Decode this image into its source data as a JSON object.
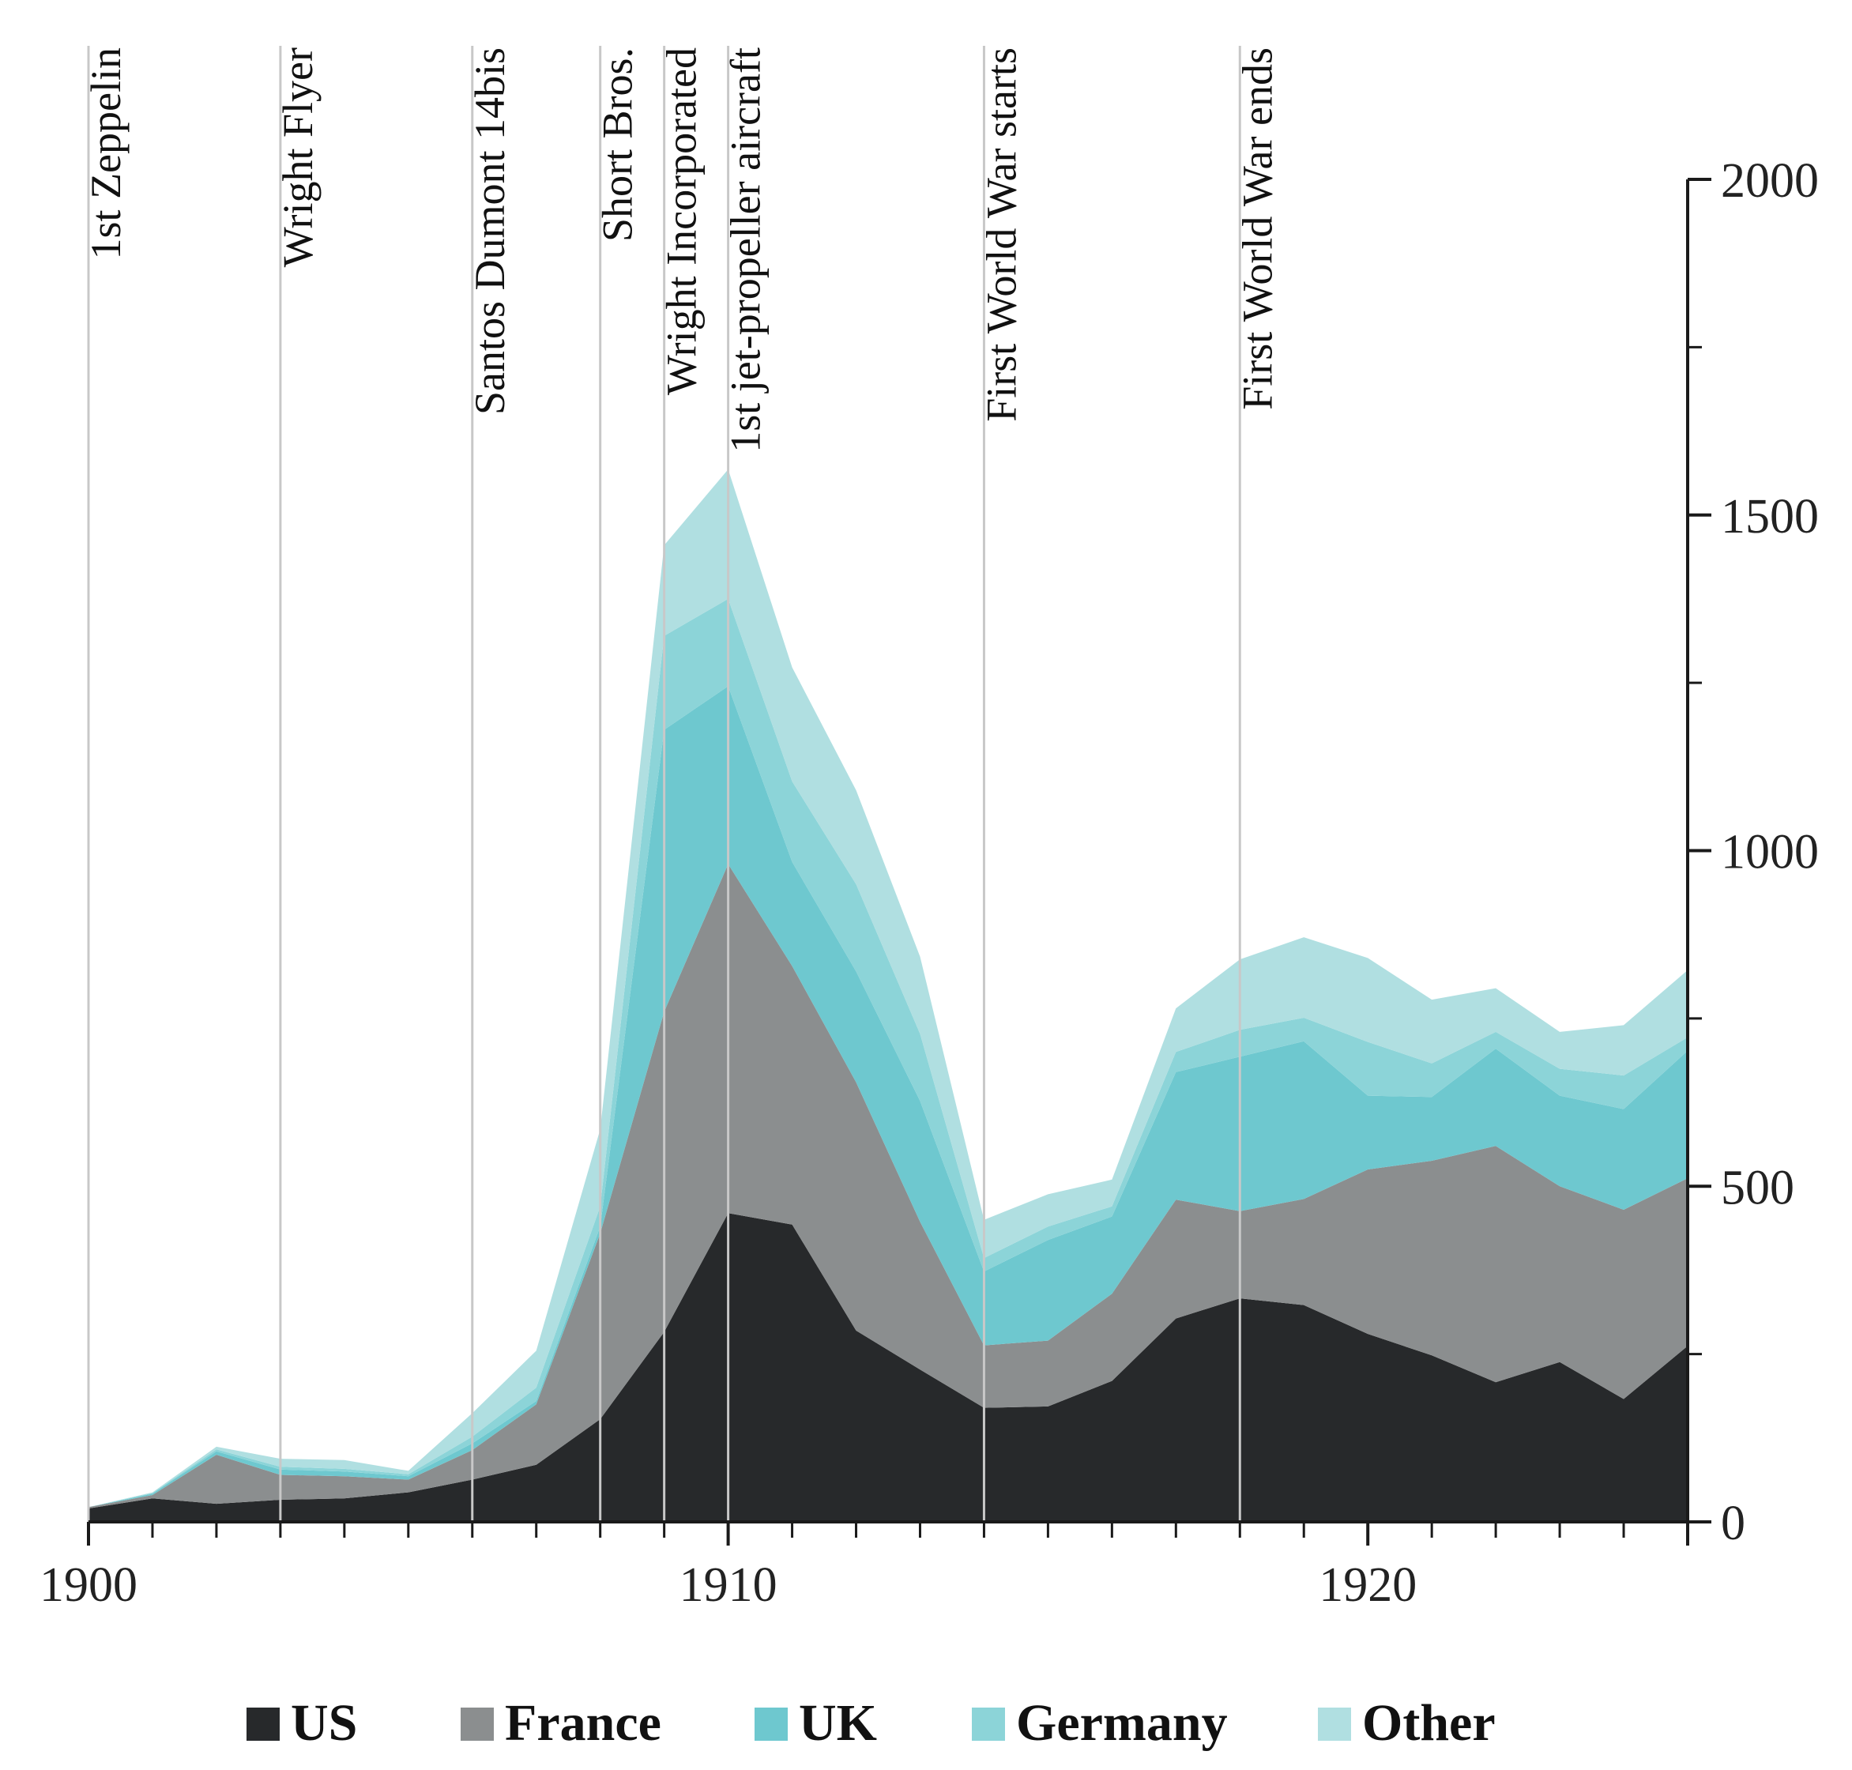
{
  "chart_data": {
    "type": "area",
    "stacked": true,
    "title": "",
    "xlabel": "",
    "ylabel": "",
    "xlim": [
      1900,
      1925
    ],
    "ylim": [
      0,
      2000
    ],
    "grid": false,
    "x_ticks": [
      1900,
      1910,
      1920
    ],
    "x_tick_labels": [
      "1900",
      "1910",
      "1920"
    ],
    "y_ticks": [
      0,
      500,
      1000,
      1500,
      2000
    ],
    "y_tick_labels": [
      "0",
      "500",
      "1000",
      "1500",
      "2000"
    ],
    "y_axis_side": "right",
    "legend_position": "bottom",
    "x": [
      1900,
      1901,
      1902,
      1903,
      1904,
      1905,
      1906,
      1907,
      1908,
      1909,
      1910,
      1911,
      1912,
      1913,
      1914,
      1915,
      1916,
      1917,
      1918,
      1919,
      1920,
      1921,
      1922,
      1923,
      1924,
      1925
    ],
    "series": [
      {
        "name": "US",
        "color": "#27292b",
        "values": [
          20,
          35,
          27,
          33,
          35,
          44,
          63,
          85,
          153,
          283,
          460,
          443,
          285,
          227,
          170,
          172,
          210,
          303,
          333,
          323,
          280,
          248,
          208,
          238,
          183,
          262
        ]
      },
      {
        "name": "France",
        "color": "#8b8e8f",
        "values": [
          2,
          5,
          73,
          37,
          33,
          19,
          44,
          90,
          277,
          477,
          520,
          385,
          370,
          220,
          93,
          98,
          130,
          177,
          130,
          158,
          245,
          290,
          352,
          262,
          282,
          250
        ]
      },
      {
        "name": "UK",
        "color": "#6ec8cf",
        "values": [
          0,
          2,
          5,
          8,
          7,
          5,
          10,
          5,
          10,
          420,
          265,
          155,
          165,
          180,
          110,
          150,
          115,
          190,
          230,
          235,
          110,
          95,
          145,
          135,
          150,
          190
        ]
      },
      {
        "name": "Germany",
        "color": "#8cd4d8",
        "values": [
          0,
          1,
          3,
          4,
          4,
          3,
          10,
          20,
          30,
          140,
          130,
          120,
          130,
          100,
          20,
          20,
          15,
          30,
          40,
          35,
          80,
          50,
          25,
          40,
          50,
          20
        ]
      },
      {
        "name": "Other",
        "color": "#b0dfe1",
        "values": [
          0,
          1,
          4,
          12,
          13,
          5,
          35,
          55,
          115,
          135,
          193,
          170,
          140,
          115,
          57,
          48,
          40,
          65,
          105,
          120,
          125,
          95,
          65,
          55,
          75,
          100
        ]
      }
    ],
    "events": [
      {
        "year": 1900.0,
        "label": "1st Zeppelin"
      },
      {
        "year": 1903.0,
        "label": "Wright Flyer"
      },
      {
        "year": 1906.0,
        "label": "Santos Dumont 14bis"
      },
      {
        "year": 1908.0,
        "label": "Short Bros."
      },
      {
        "year": 1909.0,
        "label": "Wright Incorporated"
      },
      {
        "year": 1910.0,
        "label": "1st jet-propeller aircraft"
      },
      {
        "year": 1914.0,
        "label": "First World War starts"
      },
      {
        "year": 1918.0,
        "label": "First World War ends"
      }
    ]
  }
}
